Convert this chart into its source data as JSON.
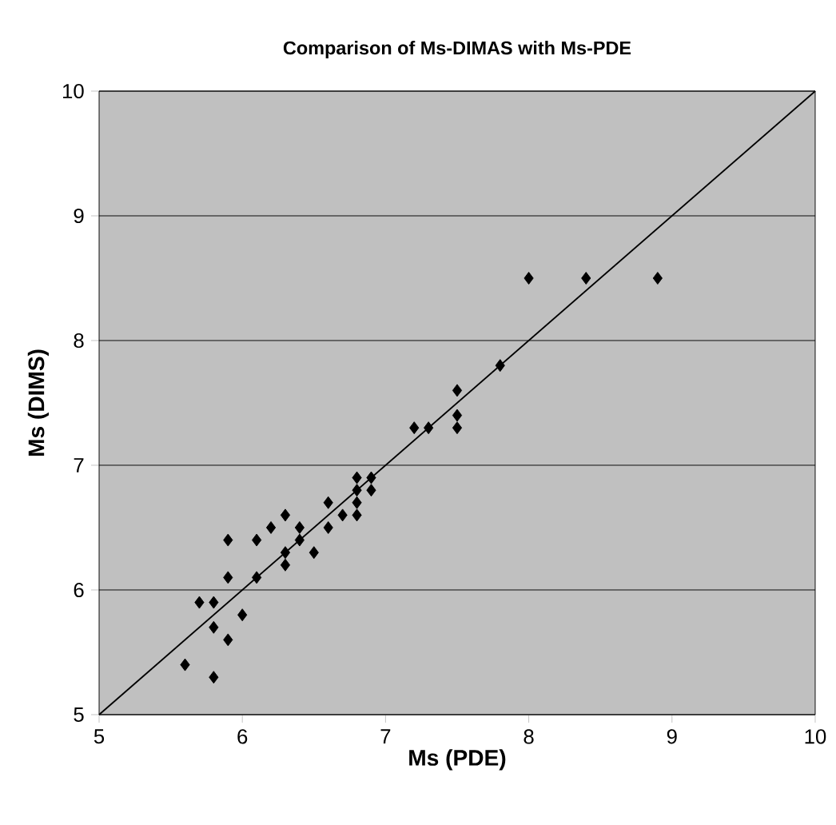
{
  "chart_data": {
    "type": "scatter",
    "title": "Comparison of Ms-DIMAS with Ms-PDE",
    "xlabel": "Ms  (PDE)",
    "ylabel": "Ms  (DIMS)",
    "xlim": [
      5,
      10
    ],
    "ylim": [
      5,
      10
    ],
    "xticks": [
      5,
      6,
      7,
      8,
      9,
      10
    ],
    "yticks": [
      5,
      6,
      7,
      8,
      9,
      10
    ],
    "grid": "y",
    "series": [
      {
        "marker": "diamond",
        "color": "#000000",
        "x": [
          5.6,
          5.8,
          5.7,
          5.8,
          5.8,
          5.9,
          5.9,
          5.9,
          6.0,
          6.1,
          6.1,
          6.2,
          6.3,
          6.3,
          6.3,
          6.4,
          6.4,
          6.5,
          6.6,
          6.6,
          6.7,
          6.8,
          6.8,
          6.8,
          6.8,
          6.9,
          6.9,
          7.2,
          7.3,
          7.5,
          7.5,
          7.5,
          7.8,
          8.0,
          8.4,
          8.9
        ],
        "values": [
          5.4,
          5.3,
          5.9,
          5.9,
          5.7,
          5.6,
          6.1,
          6.4,
          5.8,
          6.1,
          6.4,
          6.5,
          6.6,
          6.3,
          6.2,
          6.5,
          6.4,
          6.3,
          6.7,
          6.5,
          6.6,
          6.9,
          6.8,
          6.7,
          6.6,
          6.9,
          6.8,
          7.3,
          7.3,
          7.6,
          7.4,
          7.3,
          7.8,
          8.5,
          8.5,
          8.5
        ]
      },
      {
        "type": "line",
        "marker": "none",
        "color": "#000000",
        "x": [
          5,
          10
        ],
        "values": [
          5,
          10
        ]
      }
    ]
  }
}
